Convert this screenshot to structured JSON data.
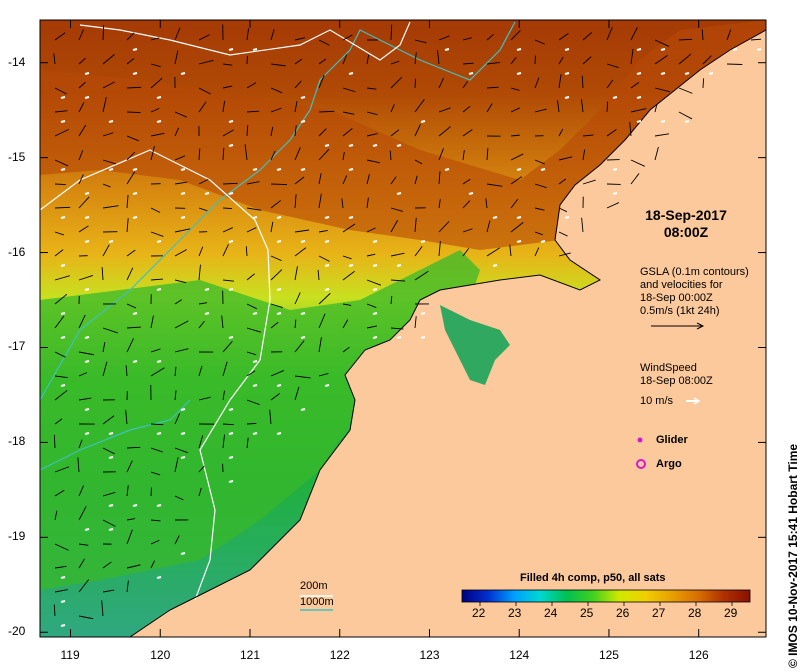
{
  "map": {
    "lon_ticks": [
      "119",
      "120",
      "121",
      "122",
      "123",
      "124",
      "125",
      "126"
    ],
    "lat_ticks": [
      "-14",
      "-15",
      "-16",
      "-17",
      "-18",
      "-19",
      "-20"
    ],
    "lon_range": [
      118.66,
      126.75
    ],
    "lat_range": [
      -13.55,
      -20.05
    ]
  },
  "title": {
    "date": "18-Sep-2017",
    "time": "08:00Z"
  },
  "gsla_legend": {
    "lines": [
      "GSLA (0.1m contours)",
      "and velocities for",
      "18-Sep 00:00Z",
      "0.5m/s (1kt 24h)"
    ]
  },
  "wind_legend": {
    "lines": [
      "WindSpeed",
      "18-Sep 08:00Z"
    ],
    "scale_label": "10 m/s"
  },
  "markers": {
    "glider_label": "Glider",
    "argo_label": "Argo",
    "glider_color": "#d01cd0",
    "argo_color": "#d01cd0"
  },
  "bathymetry": {
    "label_200": "200m",
    "label_1000": "1000m",
    "color_200": "#ffffff",
    "color_1000": "#40c0c0"
  },
  "colorbar": {
    "title": "Filled 4h comp, p50, all sats",
    "ticks": [
      "22",
      "23",
      "24",
      "25",
      "26",
      "27",
      "28",
      "29"
    ],
    "range": [
      21.5,
      29.5
    ],
    "colors": [
      "#00007f",
      "#0030d0",
      "#00a0ff",
      "#00d8d0",
      "#00c050",
      "#40d020",
      "#d0e800",
      "#f0d000",
      "#e8a000",
      "#d87000",
      "#b03000",
      "#8a1000"
    ]
  },
  "land_color": "#fbc99b",
  "credit": "© IMOS 10-Nov-2017 15:41 Hobart Time"
}
